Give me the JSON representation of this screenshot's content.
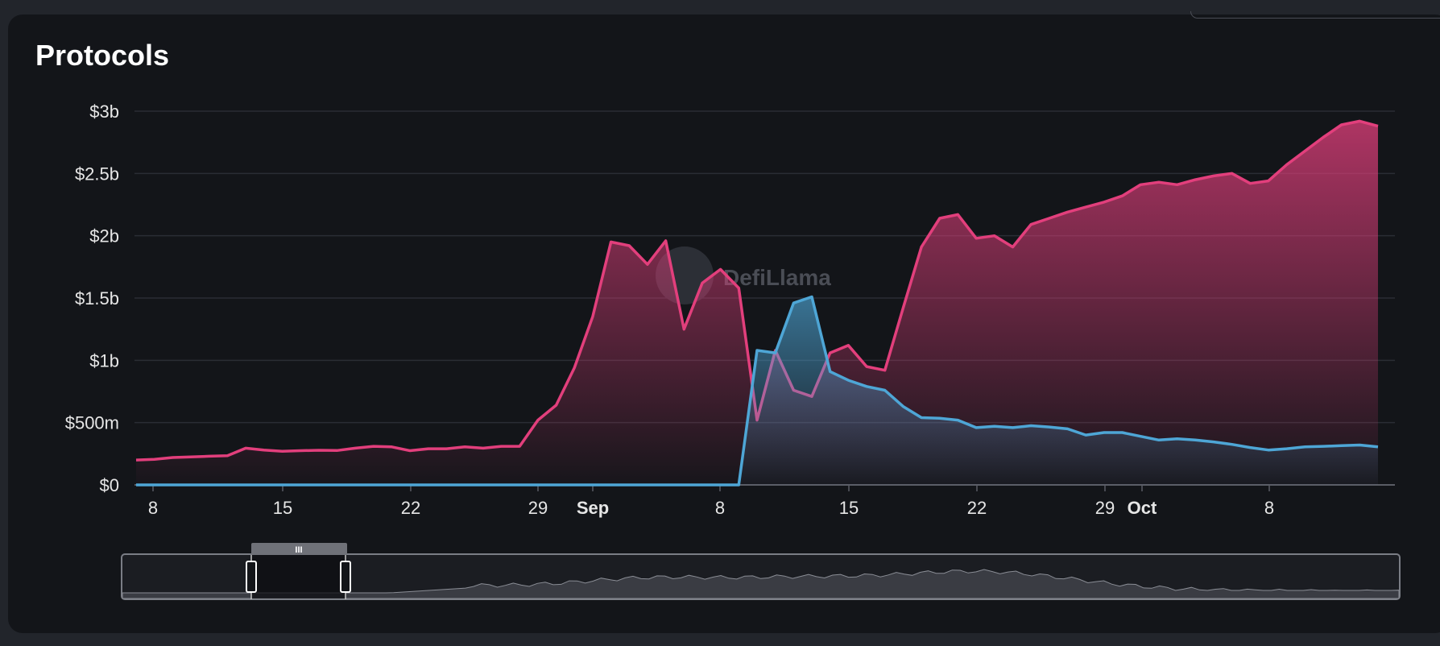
{
  "title": "Protocols",
  "watermark": "DefiLlama",
  "colors": {
    "background": "#131519",
    "page": "#22252b",
    "series_pink": "#e23f7c",
    "series_blue": "#4ea6d6",
    "grid": "#2a2d34"
  },
  "chart_data": {
    "type": "area",
    "y_ticks": [
      "$0",
      "$500m",
      "$1b",
      "$1.5b",
      "$2b",
      "$2.5b",
      "$3b"
    ],
    "ylim": [
      0,
      3000000000
    ],
    "x_ticks": [
      {
        "label": "8",
        "month": false
      },
      {
        "label": "15",
        "month": false
      },
      {
        "label": "22",
        "month": false
      },
      {
        "label": "29",
        "month": false
      },
      {
        "label": "Sep",
        "month": true
      },
      {
        "label": "8",
        "month": false
      },
      {
        "label": "15",
        "month": false
      },
      {
        "label": "22",
        "month": false
      },
      {
        "label": "29",
        "month": false
      },
      {
        "label": "Oct",
        "month": true
      },
      {
        "label": "8",
        "month": false
      }
    ],
    "x_range": [
      "Aug 7",
      "Oct 13"
    ],
    "grid": true,
    "series": [
      {
        "color": "#e23f7c",
        "values": [
          200000000,
          205000000,
          220000000,
          225000000,
          230000000,
          235000000,
          295000000,
          280000000,
          270000000,
          275000000,
          278000000,
          276000000,
          295000000,
          310000000,
          305000000,
          275000000,
          290000000,
          290000000,
          305000000,
          295000000,
          310000000,
          310000000,
          520000000,
          640000000,
          940000000,
          1350000000,
          1950000000,
          1920000000,
          1770000000,
          1960000000,
          1250000000,
          1620000000,
          1730000000,
          1580000000,
          520000000,
          1080000000,
          760000000,
          710000000,
          1060000000,
          1120000000,
          950000000,
          920000000,
          1420000000,
          1910000000,
          2140000000,
          2170000000,
          1980000000,
          2000000000,
          1910000000,
          2090000000,
          2140000000,
          2190000000,
          2230000000,
          2270000000,
          2320000000,
          2410000000,
          2430000000,
          2410000000,
          2450000000,
          2480000000,
          2500000000,
          2420000000,
          2440000000,
          2570000000,
          2680000000,
          2790000000,
          2890000000,
          2920000000,
          2880000000
        ]
      },
      {
        "color": "#4ea6d6",
        "values": [
          0,
          0,
          0,
          0,
          0,
          0,
          0,
          0,
          0,
          0,
          0,
          0,
          0,
          0,
          0,
          0,
          0,
          0,
          0,
          0,
          0,
          0,
          0,
          0,
          0,
          0,
          0,
          0,
          0,
          0,
          0,
          0,
          0,
          0,
          1080000000,
          1060000000,
          1460000000,
          1510000000,
          910000000,
          840000000,
          790000000,
          760000000,
          630000000,
          540000000,
          535000000,
          520000000,
          460000000,
          470000000,
          460000000,
          475000000,
          465000000,
          450000000,
          400000000,
          420000000,
          420000000,
          390000000,
          360000000,
          370000000,
          360000000,
          345000000,
          325000000,
          300000000,
          280000000,
          290000000,
          305000000,
          310000000,
          315000000,
          320000000,
          305000000
        ]
      }
    ]
  },
  "range_selector": {
    "handle_label": "III"
  }
}
